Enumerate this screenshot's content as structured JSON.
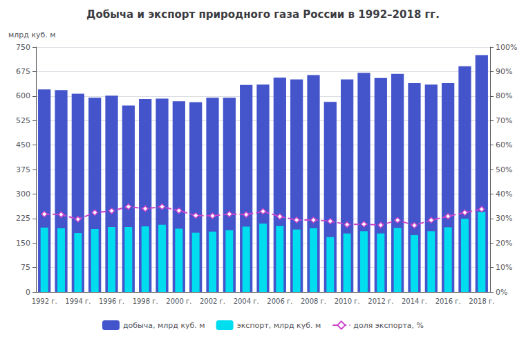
{
  "chart_data": {
    "type": "bar",
    "title": "Добыча и экспорт природного газа России в 1992–2018 гг.",
    "ylabel": "млрд куб. м",
    "categories": [
      "1992 г.",
      null,
      "1994 г.",
      null,
      "1996 г.",
      null,
      "1998 г.",
      null,
      "2000 г.",
      null,
      "2002 г.",
      null,
      "2004 г.",
      null,
      "2006 г.",
      null,
      "2008 г.",
      null,
      "2010 г.",
      null,
      "2012 г.",
      null,
      "2014 г.",
      null,
      "2016 г.",
      null,
      "2018 г."
    ],
    "series": [
      {
        "name": "добыча, млрд куб. м",
        "type": "bar",
        "color": "#4455cc",
        "values": [
          620,
          618,
          607,
          595,
          601,
          571,
          591,
          592,
          584,
          581,
          595,
          595,
          634,
          635,
          656,
          651,
          664,
          582,
          651,
          671,
          655,
          668,
          640,
          635,
          640,
          691,
          725
        ]
      },
      {
        "name": "экспорт, млрд куб. м",
        "type": "bar",
        "color": "#00ddee",
        "values": [
          197,
          195,
          180,
          193,
          199,
          199,
          201,
          206,
          194,
          181,
          185,
          189,
          200,
          209,
          202,
          191,
          195,
          168,
          179,
          186,
          179,
          196,
          174,
          186,
          198,
          224,
          245
        ]
      },
      {
        "name": "доля экспорта, %",
        "type": "line",
        "axis": "y2",
        "color": "#cc44cc",
        "marker": "diamond",
        "line_style": "dashed",
        "values": [
          0.318,
          0.316,
          0.297,
          0.324,
          0.331,
          0.348,
          0.34,
          0.348,
          0.332,
          0.312,
          0.311,
          0.318,
          0.316,
          0.329,
          0.308,
          0.294,
          0.294,
          0.289,
          0.275,
          0.277,
          0.273,
          0.293,
          0.272,
          0.293,
          0.309,
          0.324,
          0.338
        ]
      }
    ],
    "ylim": [
      0,
      750
    ],
    "yticks": [
      0,
      75,
      150,
      225,
      300,
      375,
      450,
      525,
      600,
      675,
      750
    ],
    "y2lim": [
      0,
      1.0
    ],
    "y2ticks": [
      {
        "value": 0.0,
        "label": "0%"
      },
      {
        "value": 0.1,
        "label": "10%"
      },
      {
        "value": 0.2,
        "label": "20%"
      },
      {
        "value": 0.3,
        "label": "30%"
      },
      {
        "value": 0.4,
        "label": "40%"
      },
      {
        "value": 0.5,
        "label": "50%"
      },
      {
        "value": 0.6,
        "label": "60%"
      },
      {
        "value": 0.7,
        "label": "70%"
      },
      {
        "value": 0.8,
        "label": "80%"
      },
      {
        "value": 0.9,
        "label": "90%"
      },
      {
        "value": 1.0,
        "label": "100%"
      }
    ],
    "grid": true,
    "legend": "bottom"
  }
}
